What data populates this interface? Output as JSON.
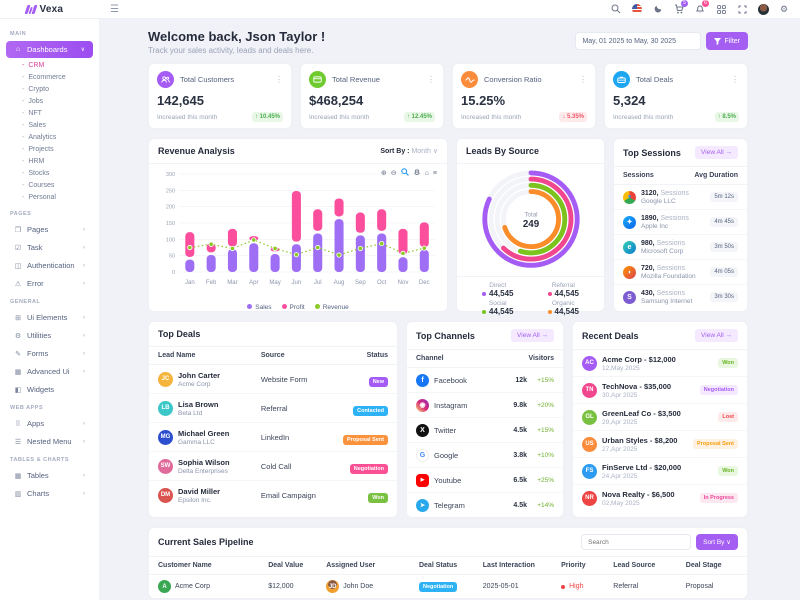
{
  "brand": {
    "name": "Vexa"
  },
  "header": {
    "icons": [
      "search",
      "flag",
      "moon",
      "cart",
      "bell",
      "grid",
      "fullscreen",
      "avatar",
      "gear"
    ],
    "cart_badge": "5",
    "bell_badge": "6"
  },
  "sidebar": {
    "sections": [
      {
        "label": "MAIN"
      },
      {
        "label": "PAGES"
      },
      {
        "label": "GENERAL"
      },
      {
        "label": "WEB APPS"
      },
      {
        "label": "TABLES & CHARTS"
      }
    ],
    "dashboards": {
      "label": "Dashboards",
      "active": true
    },
    "dashboard_children": [
      "CRM",
      "Ecommerce",
      "Crypto",
      "Jobs",
      "NFT",
      "Sales",
      "Analytics",
      "Projects",
      "HRM",
      "Stocks",
      "Courses",
      "Personal"
    ],
    "active_child": "CRM",
    "pages_items": [
      {
        "label": "Pages",
        "icon": "❐",
        "chevron": true
      },
      {
        "label": "Task",
        "icon": "☑",
        "chevron": true
      },
      {
        "label": "Authentication",
        "icon": "◫",
        "chevron": true
      },
      {
        "label": "Error",
        "icon": "⚠",
        "chevron": true
      }
    ],
    "general_items": [
      {
        "label": "Ui Elements",
        "icon": "⊞",
        "chevron": true
      },
      {
        "label": "Utilities",
        "icon": "⚙",
        "chevron": true
      },
      {
        "label": "Forms",
        "icon": "✎",
        "chevron": true
      },
      {
        "label": "Advanced Ui",
        "icon": "▦",
        "chevron": true
      },
      {
        "label": "Widgets",
        "icon": "◧",
        "chevron": false
      }
    ],
    "webapps_items": [
      {
        "label": "Apps",
        "icon": "⠿",
        "chevron": true
      },
      {
        "label": "Nested Menu",
        "icon": "☰",
        "chevron": true
      }
    ],
    "tables_items": [
      {
        "label": "Tables",
        "icon": "▦",
        "chevron": true
      },
      {
        "label": "Charts",
        "icon": "▥",
        "chevron": true
      }
    ]
  },
  "welcome": {
    "title": "Welcome back, Json Taylor !",
    "subtitle": "Track your sales activity, leads and deals here.",
    "date_range": "May, 01 2025 to May, 30 2025",
    "filter_label": "Filter"
  },
  "stats": [
    {
      "label": "Total Customers",
      "value": "142,645",
      "note": "Increased this month",
      "delta": "↑ 10.45%",
      "dir": "up",
      "icon": "users",
      "color": "#a55cf5"
    },
    {
      "label": "Total Revenue",
      "value": "$468,254",
      "note": "Increased this month",
      "delta": "↑ 12.45%",
      "dir": "up",
      "icon": "wallet",
      "color": "#6fca2f"
    },
    {
      "label": "Conversion Ratio",
      "value": "15.25%",
      "note": "Increased this month",
      "delta": "↓ 5.35%",
      "dir": "down",
      "icon": "wave",
      "color": "#fb8c3c"
    },
    {
      "label": "Total Deals",
      "value": "5,324",
      "note": "Increased this month",
      "delta": "↑ 8.5%",
      "dir": "up",
      "icon": "briefcase",
      "color": "#1ea6f0"
    }
  ],
  "revenue_card": {
    "title": "Revenue Analysis",
    "sort_by_label": "Sort By :",
    "sort_by_value": "Month"
  },
  "leads_card": {
    "title": "Leads By Source",
    "center_label": "Total",
    "center_value": "249"
  },
  "chart_data": [
    {
      "type": "bar",
      "name": "revenue_analysis",
      "title": "Revenue Analysis",
      "categories": [
        "Jan",
        "Feb",
        "Mar",
        "Apr",
        "May",
        "Jun",
        "Jul",
        "Aug",
        "Sep",
        "Oct",
        "Nov",
        "Dec"
      ],
      "series": [
        {
          "name": "Sales",
          "type": "bar",
          "color": "#9e6ef5",
          "values": [
            38,
            52,
            70,
            88,
            55,
            85,
            118,
            162,
            112,
            118,
            45,
            68
          ]
        },
        {
          "name": "Profit",
          "type": "bar-top",
          "color": "#fb4f9e",
          "stack_top": [
            122,
            88,
            132,
            110,
            75,
            248,
            192,
            225,
            182,
            192,
            132,
            152
          ]
        },
        {
          "name": "Revenue",
          "type": "line",
          "color": "#8bc926",
          "values": [
            75,
            85,
            72,
            98,
            72,
            53,
            75,
            52,
            72,
            87,
            57,
            73
          ]
        }
      ],
      "ylim": [
        0,
        300
      ],
      "yticks": [
        0,
        50,
        100,
        150,
        200,
        250,
        300
      ],
      "grid": true,
      "legend_position": "bottom"
    },
    {
      "type": "pie",
      "name": "leads_by_source",
      "title": "Leads By Source",
      "subtype": "radialBar",
      "center": {
        "label": "Total",
        "value": 249
      },
      "segments": [
        {
          "label": "Direct",
          "value": "44,545",
          "color": "#a55cf5",
          "sweep_pct": 82
        },
        {
          "label": "Referral",
          "value": "44,545",
          "color": "#f1478e",
          "sweep_pct": 62
        },
        {
          "label": "Social",
          "value": "44,545",
          "color": "#7cc31d",
          "sweep_pct": 55
        },
        {
          "label": "Organic",
          "value": "44,545",
          "color": "#fb8c2a",
          "sweep_pct": 70
        }
      ]
    }
  ],
  "top_sessions": {
    "title": "Top Sessions",
    "view_all": "View All →",
    "col1": "Sessions",
    "col2": "Avg Duration",
    "rows": [
      {
        "count": "3120,",
        "suffix": "Sessions",
        "company": "Google LLC",
        "duration": "5m 12s",
        "browser": "chrome"
      },
      {
        "count": "1890,",
        "suffix": "Sessions",
        "company": "Apple Inc",
        "duration": "4m 45s",
        "browser": "safari"
      },
      {
        "count": "980,",
        "suffix": "Sessions",
        "company": "Microsoft Corp",
        "duration": "3m 50s",
        "browser": "edge"
      },
      {
        "count": "720,",
        "suffix": "Sessions",
        "company": "Mozilla Foundation",
        "duration": "4m 05s",
        "browser": "firefox"
      },
      {
        "count": "430,",
        "suffix": "Sessions",
        "company": "Samsung Internet",
        "duration": "3m 30s",
        "browser": "samsung"
      }
    ]
  },
  "top_deals": {
    "title": "Top Deals",
    "columns": [
      "Lead Name",
      "Source",
      "Status"
    ],
    "rows": [
      {
        "name": "John Carter",
        "company": "Acme Corp",
        "source": "Website Form",
        "status": "New",
        "status_color": "#a55cf5",
        "initials": "JC",
        "avatar_color": "#f5b43c"
      },
      {
        "name": "Lisa Brown",
        "company": "Beta Ltd",
        "source": "Referral",
        "status": "Contacted",
        "status_color": "#2db3f5",
        "initials": "LB",
        "avatar_color": "#3cc8c8"
      },
      {
        "name": "Michael Green",
        "company": "Gamma LLC",
        "source": "LinkedIn",
        "status": "Proposal Sent",
        "status_color": "#fb923c",
        "initials": "MG",
        "avatar_color": "#2d4ecf"
      },
      {
        "name": "Sophia Wilson",
        "company": "Delta Enterprises",
        "source": "Cold Call",
        "status": "Negotiation",
        "status_color": "#fb5094",
        "initials": "SW",
        "avatar_color": "#e06a9a"
      },
      {
        "name": "David Miller",
        "company": "Epsilon Inc.",
        "source": "Email Campaign",
        "status": "Won",
        "status_color": "#7ac142",
        "initials": "DM",
        "avatar_color": "#d9534f"
      }
    ]
  },
  "top_channels": {
    "title": "Top Channels",
    "view_all": "View All →",
    "col1": "Channel",
    "col2": "Visitors",
    "rows": [
      {
        "name": "Facebook",
        "visitors": "12k",
        "delta": "+15%",
        "icon": "facebook",
        "color": "#1877f2",
        "glyph": "f"
      },
      {
        "name": "Instagram",
        "visitors": "9.8k",
        "delta": "+20%",
        "icon": "instagram",
        "color": "#d62976",
        "glyph": "◉"
      },
      {
        "name": "Twitter",
        "visitors": "4.5k",
        "delta": "+15%",
        "icon": "twitter",
        "color": "#111111",
        "glyph": "X"
      },
      {
        "name": "Google",
        "visitors": "3.8k",
        "delta": "+10%",
        "icon": "google",
        "color": "#ffffff",
        "glyph": "G"
      },
      {
        "name": "Youtube",
        "visitors": "6.5k",
        "delta": "+25%",
        "icon": "youtube",
        "color": "#ff0000",
        "glyph": "▶"
      },
      {
        "name": "Telegram",
        "visitors": "4.5k",
        "delta": "+14%",
        "icon": "telegram",
        "color": "#29a9eb",
        "glyph": "➤"
      }
    ]
  },
  "recent_deals": {
    "title": "Recent Deals",
    "view_all": "View All →",
    "rows": [
      {
        "name": "Acme Corp - $12,000",
        "date": "12,May 2025",
        "initials": "AC",
        "avatar_color": "#a55cf5",
        "status": "Won",
        "badge_bg": "#e9f7e0",
        "badge_fg": "#67b421"
      },
      {
        "name": "TechNova - $35,000",
        "date": "30,Apr 2025",
        "initials": "TN",
        "avatar_color": "#f1478e",
        "status": "Negotiation",
        "badge_bg": "#f4e9fe",
        "badge_fg": "#a55cf5"
      },
      {
        "name": "GreenLeaf Co - $3,500",
        "date": "29,Apr 2025",
        "initials": "GL",
        "avatar_color": "#7ac142",
        "status": "Lost",
        "badge_bg": "#fdeaea",
        "badge_fg": "#ef4444"
      },
      {
        "name": "Urban Styles - $8,200",
        "date": "27,Apr 2025",
        "initials": "US",
        "avatar_color": "#fb8c3c",
        "status": "Proposal Sent",
        "badge_bg": "#fef1e2",
        "badge_fg": "#f59e0b"
      },
      {
        "name": "FinServe Ltd - $20,000",
        "date": "24,Apr 2025",
        "initials": "FS",
        "avatar_color": "#2d9cf0",
        "status": "Won",
        "badge_bg": "#e9f7e0",
        "badge_fg": "#67b421"
      },
      {
        "name": "Nova Realty - $6,500",
        "date": "02,May 2025",
        "initials": "NR",
        "avatar_color": "#ef4444",
        "status": "In Progress",
        "badge_bg": "#fde7f1",
        "badge_fg": "#ec4899"
      }
    ]
  },
  "pipeline": {
    "title": "Current Sales Pipeline",
    "search_placeholder": "Search",
    "sort_label": "Sort By ∨",
    "columns": [
      "Customer Name",
      "Deal Value",
      "Assigned User",
      "Deal Status",
      "Last Interaction",
      "Priority",
      "Lead Source",
      "Deal Stage"
    ],
    "rows": [
      {
        "customer": "Acme Corp",
        "value": "$12,000",
        "user": "John Doe",
        "user_initials": "JD",
        "status": "Negotiation",
        "status_color": "#2db3f5",
        "last": "2025-05-01",
        "priority": "High",
        "priority_color": "#ef4444",
        "source": "Referral",
        "stage": "Proposal"
      }
    ]
  }
}
